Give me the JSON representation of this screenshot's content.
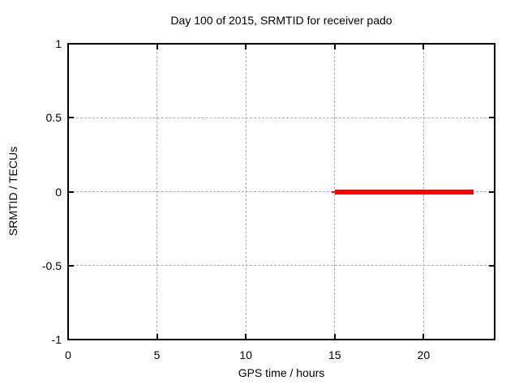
{
  "chart_data": {
    "type": "line",
    "title": "Day 100 of 2015, SRMTID for receiver pado",
    "xlabel": "GPS time / hours",
    "ylabel": "SRMTID / TECUs",
    "xlim": [
      0,
      24
    ],
    "ylim": [
      -1,
      1
    ],
    "x_ticks": [
      {
        "value": 0,
        "label": "0"
      },
      {
        "value": 5,
        "label": "5"
      },
      {
        "value": 10,
        "label": "10"
      },
      {
        "value": 15,
        "label": "15"
      },
      {
        "value": 20,
        "label": "20"
      }
    ],
    "y_ticks": [
      {
        "value": 1,
        "label": "1"
      },
      {
        "value": 0.5,
        "label": "0.5"
      },
      {
        "value": 0,
        "label": "0"
      },
      {
        "value": -0.5,
        "label": "-0.5"
      },
      {
        "value": -1,
        "label": "-1"
      }
    ],
    "grid": true,
    "legend": "none",
    "series": [
      {
        "name": "SRMTID",
        "color": "#ff0000",
        "description": "constant value 0 TECUs from ~15.0 to ~22.8 hours",
        "segments": [
          {
            "x_start": 14.83,
            "x_end": 15.0,
            "y": 0,
            "thickness_px": 2
          },
          {
            "x_start": 15.0,
            "x_end": 22.82,
            "y": 0,
            "thickness_px": 6
          }
        ]
      }
    ],
    "colors": {
      "background": "#ffffff",
      "frame": "#000000",
      "grid": "#a9a9a9",
      "series_red": "#ff0000"
    }
  }
}
